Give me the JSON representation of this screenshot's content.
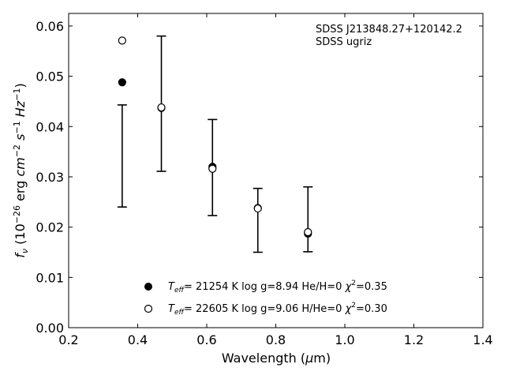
{
  "chart_data": {
    "type": "scatter",
    "xlabel": "Wavelength (μm)",
    "ylabel": "f_ν (10^-26 erg cm^-2 s^-1 Hz^-1)",
    "xlim": [
      0.2,
      1.4
    ],
    "ylim": [
      0.0,
      0.0625
    ],
    "xticks": [
      0.2,
      0.4,
      0.6,
      0.8,
      1.0,
      1.2,
      1.4
    ],
    "xtick_labels": [
      "0.2",
      "0.4",
      "0.6",
      "0.8",
      "1.0",
      "1.2",
      "1.4"
    ],
    "yticks": [
      0.0,
      0.01,
      0.02,
      0.03,
      0.04,
      0.05,
      0.06
    ],
    "ytick_labels": [
      "0.00",
      "0.01",
      "0.02",
      "0.03",
      "0.04",
      "0.05",
      "0.06"
    ],
    "grid": false,
    "annotations": [
      "SDSS J213848.27+120142.2",
      "SDSS ugriz"
    ],
    "observed": {
      "x": [
        0.3551,
        0.4686,
        0.6166,
        0.748,
        0.8932
      ],
      "ylow": [
        0.024,
        0.0311,
        0.0223,
        0.015,
        0.0151
      ],
      "yhigh": [
        0.0443,
        0.058,
        0.0414,
        0.0277,
        0.028
      ]
    },
    "series": [
      {
        "name": "T_eff= 21254 K  log g=8.94  He/H=0  χ²=0.35",
        "marker": "filled-circle",
        "x": [
          0.3551,
          0.4686,
          0.6166,
          0.748,
          0.8932
        ],
        "values": [
          0.0488,
          0.0437,
          0.032,
          0.0238,
          0.0187
        ]
      },
      {
        "name": "T_eff= 22605 K  log g=9.06  H/He=0  χ²=0.30",
        "marker": "open-circle",
        "x": [
          0.3551,
          0.4686,
          0.6166,
          0.748,
          0.8932
        ],
        "values": [
          0.0571,
          0.0438,
          0.0316,
          0.0237,
          0.019
        ]
      }
    ],
    "legend_position": "bottom-center"
  },
  "colors": {
    "axes": "#000000",
    "marker": "#000000",
    "background": "#ffffff"
  }
}
